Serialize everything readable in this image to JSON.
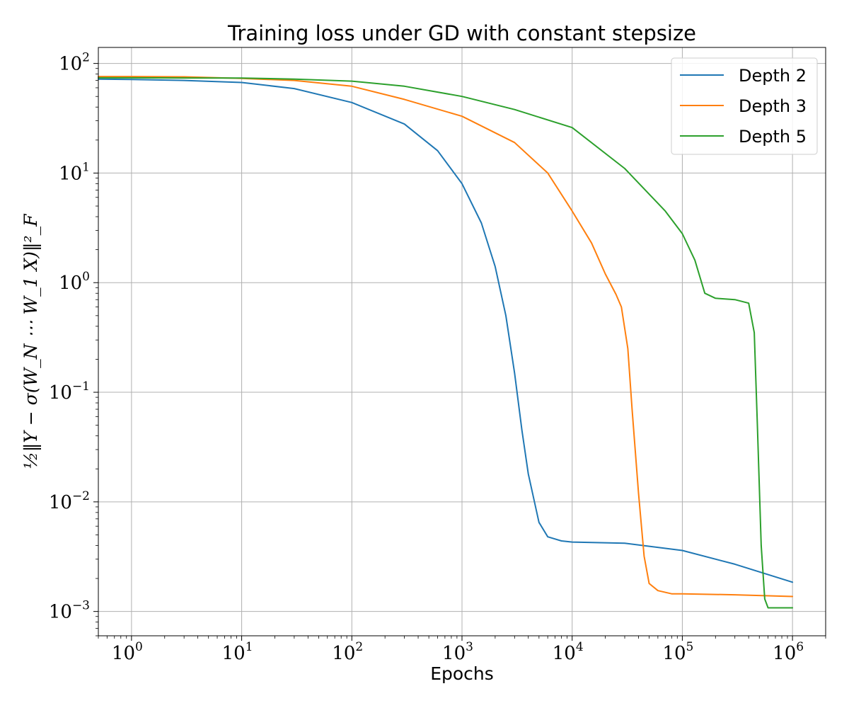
{
  "chart_data": {
    "type": "line",
    "title": "Training loss under GD with constant stepsize",
    "xlabel": "Epochs",
    "ylabel": "½‖Y − σ(W_N ⋯ W_1 X)‖²_F",
    "xscale": "log",
    "yscale": "log",
    "xlim": [
      0.5,
      2000000
    ],
    "ylim": [
      0.0006,
      140
    ],
    "x_ticks": [
      {
        "value": 1,
        "base": "10",
        "exp": "0"
      },
      {
        "value": 10,
        "base": "10",
        "exp": "1"
      },
      {
        "value": 100,
        "base": "10",
        "exp": "2"
      },
      {
        "value": 1000,
        "base": "10",
        "exp": "3"
      },
      {
        "value": 10000,
        "base": "10",
        "exp": "4"
      },
      {
        "value": 100000,
        "base": "10",
        "exp": "5"
      },
      {
        "value": 1000000,
        "base": "10",
        "exp": "6"
      }
    ],
    "y_ticks": [
      {
        "value": 0.001,
        "base": "10",
        "exp": "−3"
      },
      {
        "value": 0.01,
        "base": "10",
        "exp": "−2"
      },
      {
        "value": 0.1,
        "base": "10",
        "exp": "−1"
      },
      {
        "value": 1,
        "base": "10",
        "exp": "0"
      },
      {
        "value": 10,
        "base": "10",
        "exp": "1"
      },
      {
        "value": 100,
        "base": "10",
        "exp": "2"
      }
    ],
    "grid": true,
    "legend_position": "top-right",
    "series": [
      {
        "name": "Depth 2",
        "color": "#1f77b4",
        "points": [
          [
            0.5,
            72
          ],
          [
            1,
            71.5
          ],
          [
            3,
            70
          ],
          [
            10,
            67
          ],
          [
            30,
            59
          ],
          [
            100,
            44
          ],
          [
            300,
            28
          ],
          [
            600,
            16
          ],
          [
            1000,
            8
          ],
          [
            1500,
            3.5
          ],
          [
            2000,
            1.4
          ],
          [
            2500,
            0.5
          ],
          [
            3000,
            0.15
          ],
          [
            3500,
            0.045
          ],
          [
            4000,
            0.018
          ],
          [
            5000,
            0.0065
          ],
          [
            6000,
            0.0048
          ],
          [
            8000,
            0.0044
          ],
          [
            10000,
            0.0043
          ],
          [
            30000,
            0.0042
          ],
          [
            100000,
            0.0036
          ],
          [
            300000,
            0.0027
          ],
          [
            1000000,
            0.00185
          ]
        ]
      },
      {
        "name": "Depth 3",
        "color": "#ff7f0e",
        "points": [
          [
            0.5,
            76
          ],
          [
            1,
            76
          ],
          [
            3,
            75.5
          ],
          [
            10,
            73
          ],
          [
            30,
            70
          ],
          [
            100,
            62
          ],
          [
            300,
            47
          ],
          [
            1000,
            33
          ],
          [
            3000,
            19
          ],
          [
            6000,
            10
          ],
          [
            10000,
            4.5
          ],
          [
            15000,
            2.3
          ],
          [
            20000,
            1.2
          ],
          [
            25000,
            0.78
          ],
          [
            28000,
            0.6
          ],
          [
            32000,
            0.25
          ],
          [
            35000,
            0.07
          ],
          [
            40000,
            0.012
          ],
          [
            45000,
            0.0032
          ],
          [
            50000,
            0.0018
          ],
          [
            60000,
            0.00155
          ],
          [
            80000,
            0.00145
          ],
          [
            100000,
            0.00145
          ],
          [
            300000,
            0.00142
          ],
          [
            1000000,
            0.00137
          ]
        ]
      },
      {
        "name": "Depth 5",
        "color": "#2ca02c",
        "points": [
          [
            0.5,
            74
          ],
          [
            1,
            74
          ],
          [
            10,
            73.5
          ],
          [
            30,
            72
          ],
          [
            100,
            69
          ],
          [
            300,
            62
          ],
          [
            1000,
            50
          ],
          [
            3000,
            38
          ],
          [
            10000,
            26
          ],
          [
            30000,
            11
          ],
          [
            70000,
            4.5
          ],
          [
            100000,
            2.8
          ],
          [
            130000,
            1.6
          ],
          [
            160000,
            0.8
          ],
          [
            200000,
            0.72
          ],
          [
            300000,
            0.7
          ],
          [
            400000,
            0.65
          ],
          [
            450000,
            0.35
          ],
          [
            480000,
            0.05
          ],
          [
            520000,
            0.004
          ],
          [
            560000,
            0.0013
          ],
          [
            600000,
            0.00108
          ],
          [
            1000000,
            0.00108
          ]
        ]
      }
    ]
  }
}
